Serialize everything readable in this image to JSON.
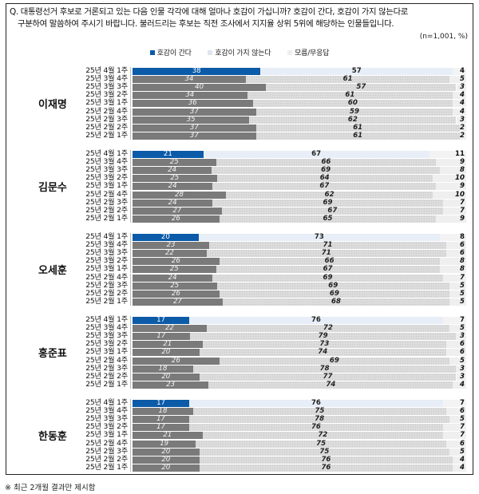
{
  "question": {
    "line1": "Q. 대통령선거 후보로 거론되고 있는 다음 인물 각각에 대해 얼마나 호감이 가십니까? 호감이 간다, 호감이 가지 않는다로",
    "line2": "구분하여 말씀하여 주시기 바랍니다. 불러드리는 후보는 직전 조사에서 지지율 상위 5위에 해당하는 인물들입니다."
  },
  "sample_note": "(n=1,001, %)",
  "legend": [
    {
      "label": "호감이 간다",
      "color": "#0b5ba8"
    },
    {
      "label": "호감이 가지 않는다",
      "color": "#dfe6f0"
    },
    {
      "label": "모름/무응답",
      "color": "#efefef"
    }
  ],
  "footnote": "※ 최근 2개월 결과만 제시함",
  "chart_data": {
    "type": "bar",
    "subtype": "stacked-horizontal-100",
    "title": "대통령선거 후보 호감도",
    "categories": [
      "25년 4월 1주",
      "25년 3월 4주",
      "25년 3월 3주",
      "25년 3월 2주",
      "25년 3월 1주",
      "25년 2월 4주",
      "25년 2월 3주",
      "25년 2월 2주",
      "25년 2월 1주"
    ],
    "series_names": [
      "호감이 간다",
      "호감이 가지 않는다",
      "모름/무응답"
    ],
    "colors": {
      "current_positive": "#0b5ba8",
      "past_positive": "#7a7a7a",
      "negative": "#dcdcdc",
      "unknown": "#efefef"
    },
    "xlim": [
      0,
      100
    ],
    "groups": [
      {
        "name": "이재명",
        "rows": [
          {
            "label": "25년 4월 1주",
            "pos": "38",
            "neg": "57",
            "unk": "4"
          },
          {
            "label": "25년 3월 4주",
            "pos": "34",
            "neg": "61",
            "unk": "5"
          },
          {
            "label": "25년 3월 3주",
            "pos": "40",
            "neg": "57",
            "unk": "3"
          },
          {
            "label": "25년 3월 2주",
            "pos": "34",
            "neg": "61",
            "unk": "4"
          },
          {
            "label": "25년 3월 1주",
            "pos": "36",
            "neg": "60",
            "unk": "4"
          },
          {
            "label": "25년 2월 4주",
            "pos": "37",
            "neg": "59",
            "unk": "4"
          },
          {
            "label": "25년 2월 3주",
            "pos": "35",
            "neg": "62",
            "unk": "3"
          },
          {
            "label": "25년 2월 2주",
            "pos": "37",
            "neg": "61",
            "unk": "2"
          },
          {
            "label": "25년 2월 1주",
            "pos": "37",
            "neg": "61",
            "unk": "2"
          }
        ]
      },
      {
        "name": "김문수",
        "rows": [
          {
            "label": "25년 4월 1주",
            "pos": "21",
            "neg": "67",
            "unk": "11"
          },
          {
            "label": "25년 3월 4주",
            "pos": "25",
            "neg": "66",
            "unk": "9"
          },
          {
            "label": "25년 3월 3주",
            "pos": "24",
            "neg": "69",
            "unk": "8"
          },
          {
            "label": "25년 3월 2주",
            "pos": "25",
            "neg": "64",
            "unk": "10"
          },
          {
            "label": "25년 3월 1주",
            "pos": "24",
            "neg": "67",
            "unk": "9"
          },
          {
            "label": "25년 2월 4주",
            "pos": "28",
            "neg": "62",
            "unk": "10"
          },
          {
            "label": "25년 2월 3주",
            "pos": "24",
            "neg": "69",
            "unk": "7"
          },
          {
            "label": "25년 2월 2주",
            "pos": "27",
            "neg": "67",
            "unk": "7"
          },
          {
            "label": "25년 2월 1주",
            "pos": "26",
            "neg": "65",
            "unk": "9"
          }
        ]
      },
      {
        "name": "오세훈",
        "rows": [
          {
            "label": "25년 4월 1주",
            "pos": "20",
            "neg": "73",
            "unk": "8"
          },
          {
            "label": "25년 3월 4주",
            "pos": "23",
            "neg": "71",
            "unk": "6"
          },
          {
            "label": "25년 3월 3주",
            "pos": "22",
            "neg": "71",
            "unk": "6"
          },
          {
            "label": "25년 3월 2주",
            "pos": "26",
            "neg": "66",
            "unk": "8"
          },
          {
            "label": "25년 3월 1주",
            "pos": "25",
            "neg": "67",
            "unk": "8"
          },
          {
            "label": "25년 2월 4주",
            "pos": "24",
            "neg": "69",
            "unk": "7"
          },
          {
            "label": "25년 2월 3주",
            "pos": "25",
            "neg": "69",
            "unk": "5"
          },
          {
            "label": "25년 2월 2주",
            "pos": "26",
            "neg": "69",
            "unk": "5"
          },
          {
            "label": "25년 2월 1주",
            "pos": "27",
            "neg": "68",
            "unk": "5"
          }
        ]
      },
      {
        "name": "홍준표",
        "rows": [
          {
            "label": "25년 4월 1주",
            "pos": "17",
            "neg": "76",
            "unk": "7"
          },
          {
            "label": "25년 3월 4주",
            "pos": "22",
            "neg": "72",
            "unk": "5"
          },
          {
            "label": "25년 3월 3주",
            "pos": "17",
            "neg": "79",
            "unk": "3"
          },
          {
            "label": "25년 3월 2주",
            "pos": "21",
            "neg": "73",
            "unk": "6"
          },
          {
            "label": "25년 3월 1주",
            "pos": "20",
            "neg": "74",
            "unk": "6"
          },
          {
            "label": "25년 2월 4주",
            "pos": "26",
            "neg": "69",
            "unk": "5"
          },
          {
            "label": "25년 2월 3주",
            "pos": "18",
            "neg": "78",
            "unk": "3"
          },
          {
            "label": "25년 2월 2주",
            "pos": "20",
            "neg": "77",
            "unk": "3"
          },
          {
            "label": "25년 2월 1주",
            "pos": "23",
            "neg": "74",
            "unk": "4"
          }
        ]
      },
      {
        "name": "한동훈",
        "rows": [
          {
            "label": "25년 4월 1주",
            "pos": "17",
            "neg": "76",
            "unk": "7"
          },
          {
            "label": "25년 3월 4주",
            "pos": "18",
            "neg": "75",
            "unk": "6"
          },
          {
            "label": "25년 3월 3주",
            "pos": "17",
            "neg": "78",
            "unk": "5"
          },
          {
            "label": "25년 3월 2주",
            "pos": "17",
            "neg": "76",
            "unk": "7"
          },
          {
            "label": "25년 3월 1주",
            "pos": "21",
            "neg": "72",
            "unk": "7"
          },
          {
            "label": "25년 2월 4주",
            "pos": "19",
            "neg": "75",
            "unk": "6"
          },
          {
            "label": "25년 2월 3주",
            "pos": "20",
            "neg": "75",
            "unk": "5"
          },
          {
            "label": "25년 2월 2주",
            "pos": "20",
            "neg": "76",
            "unk": "4"
          },
          {
            "label": "25년 2월 1주",
            "pos": "20",
            "neg": "76",
            "unk": "4"
          }
        ]
      }
    ]
  }
}
